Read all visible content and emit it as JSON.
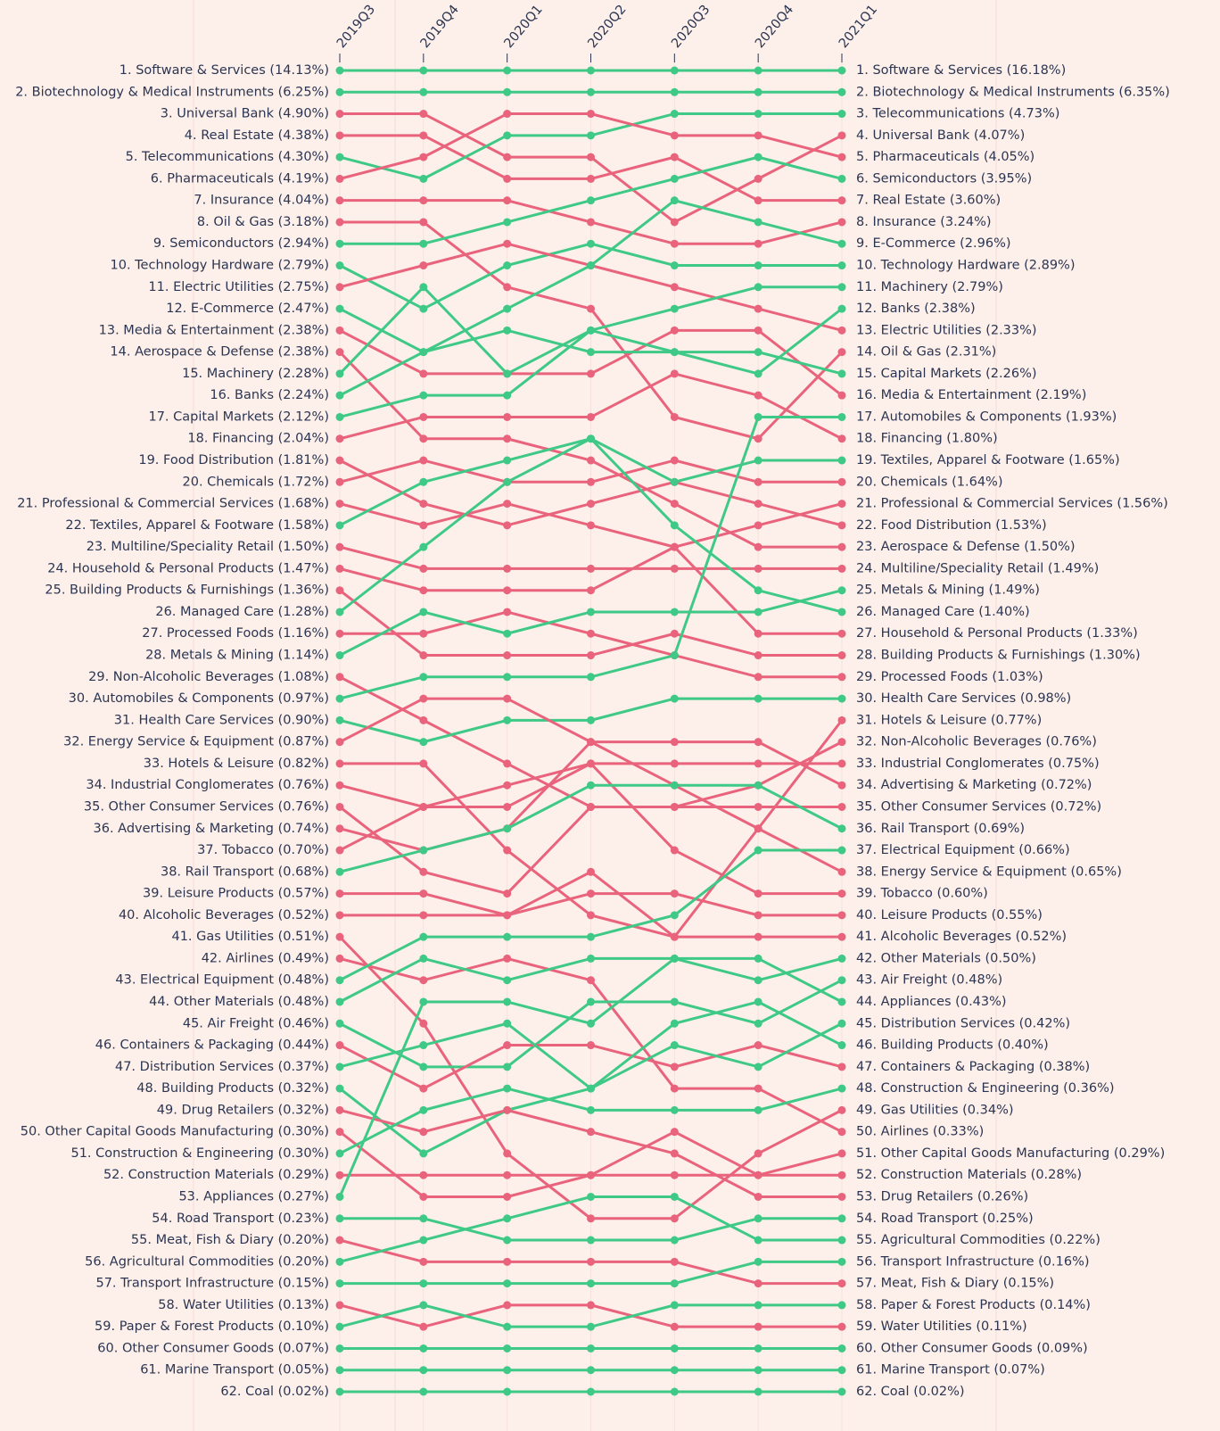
{
  "chart_data": {
    "type": "bump",
    "categories": [
      "2019Q3",
      "2019Q4",
      "2020Q1",
      "2020Q2",
      "2020Q3",
      "2020Q4",
      "2021Q1"
    ],
    "ylim": [
      1,
      62
    ],
    "left_labels": [
      "1. Software & Services (14.13%)",
      "2. Biotechnology & Medical Instruments (6.25%)",
      "3. Universal Bank (4.90%)",
      "4. Real Estate (4.38%)",
      "5. Telecommunications (4.30%)",
      "6. Pharmaceuticals (4.19%)",
      "7. Insurance (4.04%)",
      "8. Oil & Gas (3.18%)",
      "9. Semiconductors (2.94%)",
      "10. Technology Hardware (2.79%)",
      "11. Electric Utilities (2.75%)",
      "12. E-Commerce (2.47%)",
      "13. Media & Entertainment (2.38%)",
      "14. Aerospace & Defense (2.38%)",
      "15. Machinery (2.28%)",
      "16. Banks (2.24%)",
      "17. Capital Markets (2.12%)",
      "18. Financing (2.04%)",
      "19. Food Distribution (1.81%)",
      "20. Chemicals (1.72%)",
      "21. Professional & Commercial Services (1.68%)",
      "22. Textiles, Apparel & Footware (1.58%)",
      "23. Multiline/Speciality Retail (1.50%)",
      "24. Household & Personal Products (1.47%)",
      "25. Building Products & Furnishings (1.36%)",
      "26. Managed Care (1.28%)",
      "27. Processed Foods (1.16%)",
      "28. Metals & Mining (1.14%)",
      "29. Non-Alcoholic Beverages (1.08%)",
      "30. Automobiles & Components (0.97%)",
      "31. Health Care Services (0.90%)",
      "32. Energy Service & Equipment (0.87%)",
      "33. Hotels & Leisure (0.82%)",
      "34. Industrial Conglomerates (0.76%)",
      "35. Other Consumer Services (0.76%)",
      "36. Advertising & Marketing (0.74%)",
      "37. Tobacco (0.70%)",
      "38. Rail Transport (0.68%)",
      "39. Leisure Products (0.57%)",
      "40. Alcoholic Beverages (0.52%)",
      "41. Gas Utilities (0.51%)",
      "42. Airlines (0.49%)",
      "43. Electrical Equipment (0.48%)",
      "44. Other Materials (0.48%)",
      "45. Air Freight (0.46%)",
      "46. Containers & Packaging (0.44%)",
      "47. Distribution Services (0.37%)",
      "48. Building Products (0.32%)",
      "49. Drug Retailers (0.32%)",
      "50. Other Capital Goods Manufacturing (0.30%)",
      "51. Construction & Engineering (0.30%)",
      "52. Construction Materials (0.29%)",
      "53. Appliances (0.27%)",
      "54. Road Transport (0.23%)",
      "55. Meat, Fish & Diary (0.20%)",
      "56. Agricultural Commodities (0.20%)",
      "57. Transport Infrastructure (0.15%)",
      "58. Water Utilities (0.13%)",
      "59. Paper & Forest Products (0.10%)",
      "60. Other Consumer Goods (0.07%)",
      "61. Marine Transport (0.05%)",
      "62. Coal (0.02%)"
    ],
    "right_labels": [
      "1. Software & Services (16.18%)",
      "2. Biotechnology & Medical Instruments (6.35%)",
      "3. Telecommunications (4.73%)",
      "4. Universal Bank (4.07%)",
      "5. Pharmaceuticals (4.05%)",
      "6. Semiconductors (3.95%)",
      "7. Real Estate (3.60%)",
      "8. Insurance (3.24%)",
      "9. E-Commerce (2.96%)",
      "10. Technology Hardware (2.89%)",
      "11. Machinery (2.79%)",
      "12. Banks (2.38%)",
      "13. Electric Utilities (2.33%)",
      "14. Oil & Gas (2.31%)",
      "15. Capital Markets (2.26%)",
      "16. Media & Entertainment (2.19%)",
      "17. Automobiles & Components (1.93%)",
      "18. Financing (1.80%)",
      "19. Textiles, Apparel & Footware (1.65%)",
      "20. Chemicals (1.64%)",
      "21. Professional & Commercial Services (1.56%)",
      "22. Food Distribution (1.53%)",
      "23. Aerospace & Defense (1.50%)",
      "24. Multiline/Speciality Retail (1.49%)",
      "25. Metals & Mining (1.49%)",
      "26. Managed Care (1.40%)",
      "27. Household & Personal Products (1.33%)",
      "28. Building Products & Furnishings (1.30%)",
      "29. Processed Foods (1.03%)",
      "30. Health Care Services (0.98%)",
      "31. Hotels & Leisure (0.77%)",
      "32. Non-Alcoholic Beverages (0.76%)",
      "33. Industrial Conglomerates (0.75%)",
      "34. Advertising & Marketing (0.72%)",
      "35. Other Consumer Services (0.72%)",
      "36. Rail Transport (0.69%)",
      "37. Electrical Equipment (0.66%)",
      "38. Energy Service & Equipment (0.65%)",
      "39. Tobacco (0.60%)",
      "40. Leisure Products (0.55%)",
      "41. Alcoholic Beverages (0.52%)",
      "42. Other Materials (0.50%)",
      "43. Air Freight (0.48%)",
      "44. Appliances (0.43%)",
      "45. Distribution Services (0.42%)",
      "46. Building Products (0.40%)",
      "47. Containers & Packaging (0.38%)",
      "48. Construction & Engineering (0.36%)",
      "49. Gas Utilities (0.34%)",
      "50. Airlines (0.33%)",
      "51. Other Capital Goods Manufacturing (0.29%)",
      "52. Construction Materials (0.28%)",
      "53. Drug Retailers (0.26%)",
      "54. Road Transport (0.25%)",
      "55. Agricultural Commodities (0.22%)",
      "56. Transport Infrastructure (0.16%)",
      "57. Meat, Fish & Diary (0.15%)",
      "58. Paper & Forest Products (0.14%)",
      "59. Water Utilities (0.11%)",
      "60. Other Consumer Goods (0.09%)",
      "61. Marine Transport (0.07%)",
      "62. Coal (0.02%)"
    ],
    "series": [
      {
        "color": "#3fc987",
        "values": [
          1,
          1,
          1,
          1,
          1,
          1,
          1
        ]
      },
      {
        "color": "#3fc987",
        "values": [
          2,
          2,
          2,
          2,
          2,
          2,
          2
        ]
      },
      {
        "color": "#e9637c",
        "values": [
          3,
          3,
          5,
          5,
          8,
          6,
          4
        ]
      },
      {
        "color": "#e9637c",
        "values": [
          4,
          4,
          6,
          6,
          5,
          7,
          7
        ]
      },
      {
        "color": "#3fc987",
        "values": [
          5,
          6,
          4,
          4,
          3,
          3,
          3
        ]
      },
      {
        "color": "#e9637c",
        "values": [
          6,
          5,
          3,
          3,
          4,
          4,
          5
        ]
      },
      {
        "color": "#e9637c",
        "values": [
          7,
          7,
          7,
          8,
          9,
          9,
          8
        ]
      },
      {
        "color": "#e9637c",
        "values": [
          8,
          8,
          11,
          12,
          17,
          18,
          14
        ]
      },
      {
        "color": "#3fc987",
        "values": [
          9,
          9,
          8,
          7,
          6,
          5,
          6
        ]
      },
      {
        "color": "#3fc987",
        "values": [
          10,
          12,
          10,
          9,
          10,
          10,
          10
        ]
      },
      {
        "color": "#e9637c",
        "values": [
          11,
          10,
          9,
          10,
          11,
          12,
          13
        ]
      },
      {
        "color": "#3fc987",
        "values": [
          12,
          14,
          12,
          10,
          7,
          8,
          9
        ]
      },
      {
        "color": "#e9637c",
        "values": [
          13,
          15,
          15,
          15,
          13,
          13,
          16
        ]
      },
      {
        "color": "#e9637c",
        "values": [
          14,
          18,
          18,
          19,
          21,
          23,
          23
        ]
      },
      {
        "color": "#3fc987",
        "values": [
          15,
          11,
          15,
          13,
          12,
          11,
          11
        ]
      },
      {
        "color": "#3fc987",
        "values": [
          16,
          14,
          13,
          14,
          14,
          15,
          12
        ]
      },
      {
        "color": "#3fc987",
        "values": [
          17,
          16,
          16,
          13,
          14,
          14,
          15
        ]
      },
      {
        "color": "#e9637c",
        "values": [
          18,
          17,
          17,
          17,
          15,
          16,
          18
        ]
      },
      {
        "color": "#e9637c",
        "values": [
          19,
          21,
          22,
          21,
          20,
          21,
          22
        ]
      },
      {
        "color": "#e9637c",
        "values": [
          20,
          19,
          20,
          20,
          19,
          20,
          20
        ]
      },
      {
        "color": "#e9637c",
        "values": [
          21,
          22,
          21,
          22,
          23,
          22,
          21
        ]
      },
      {
        "color": "#3fc987",
        "values": [
          22,
          20,
          19,
          18,
          20,
          19,
          19
        ]
      },
      {
        "color": "#e9637c",
        "values": [
          23,
          24,
          24,
          24,
          24,
          24,
          24
        ]
      },
      {
        "color": "#e9637c",
        "values": [
          24,
          25,
          25,
          25,
          23,
          27,
          27
        ]
      },
      {
        "color": "#e9637c",
        "values": [
          25,
          28,
          28,
          28,
          27,
          28,
          28
        ]
      },
      {
        "color": "#3fc987",
        "values": [
          26,
          23,
          20,
          18,
          22,
          25,
          26
        ]
      },
      {
        "color": "#e9637c",
        "values": [
          27,
          27,
          26,
          27,
          28,
          29,
          29
        ]
      },
      {
        "color": "#3fc987",
        "values": [
          28,
          26,
          27,
          26,
          26,
          26,
          25
        ]
      },
      {
        "color": "#e9637c",
        "values": [
          29,
          31,
          33,
          35,
          35,
          34,
          32
        ]
      },
      {
        "color": "#3fc987",
        "values": [
          30,
          29,
          29,
          29,
          28,
          17,
          17
        ]
      },
      {
        "color": "#3fc987",
        "values": [
          31,
          32,
          31,
          31,
          30,
          30,
          30
        ]
      },
      {
        "color": "#e9637c",
        "values": [
          32,
          30,
          30,
          32,
          34,
          36,
          38
        ]
      },
      {
        "color": "#e9637c",
        "values": [
          33,
          33,
          37,
          40,
          41,
          36,
          31
        ]
      },
      {
        "color": "#e9637c",
        "values": [
          34,
          35,
          34,
          33,
          33,
          33,
          33
        ]
      },
      {
        "color": "#e9637c",
        "values": [
          35,
          38,
          39,
          35,
          35,
          35,
          35
        ]
      },
      {
        "color": "#e9637c",
        "values": [
          36,
          37,
          36,
          32,
          32,
          32,
          34
        ]
      },
      {
        "color": "#e9637c",
        "values": [
          37,
          35,
          35,
          33,
          37,
          39,
          39
        ]
      },
      {
        "color": "#3fc987",
        "values": [
          38,
          37,
          36,
          34,
          34,
          34,
          36
        ]
      },
      {
        "color": "#e9637c",
        "values": [
          39,
          39,
          40,
          39,
          39,
          40,
          40
        ]
      },
      {
        "color": "#e9637c",
        "values": [
          40,
          40,
          40,
          38,
          41,
          41,
          41
        ]
      },
      {
        "color": "#e9637c",
        "values": [
          41,
          45,
          51,
          54,
          54,
          51,
          49
        ]
      },
      {
        "color": "#e9637c",
        "values": [
          42,
          43,
          42,
          43,
          48,
          48,
          50
        ]
      },
      {
        "color": "#3fc987",
        "values": [
          43,
          41,
          41,
          41,
          40,
          37,
          37
        ]
      },
      {
        "color": "#3fc987",
        "values": [
          44,
          42,
          43,
          42,
          42,
          43,
          42
        ]
      },
      {
        "color": "#3fc987",
        "values": [
          45,
          47,
          47,
          44,
          44,
          45,
          43
        ]
      },
      {
        "color": "#e9637c",
        "values": [
          46,
          48,
          46,
          46,
          47,
          46,
          47
        ]
      },
      {
        "color": "#3fc987",
        "values": [
          47,
          46,
          45,
          48,
          46,
          47,
          45
        ]
      },
      {
        "color": "#3fc987",
        "values": [
          48,
          51,
          49,
          48,
          45,
          44,
          46
        ]
      },
      {
        "color": "#e9637c",
        "values": [
          49,
          50,
          49,
          50,
          51,
          53,
          53
        ]
      },
      {
        "color": "#e9637c",
        "values": [
          50,
          53,
          53,
          52,
          50,
          52,
          51
        ]
      },
      {
        "color": "#3fc987",
        "values": [
          51,
          49,
          48,
          49,
          49,
          49,
          48
        ]
      },
      {
        "color": "#e9637c",
        "values": [
          52,
          52,
          52,
          52,
          52,
          52,
          52
        ]
      },
      {
        "color": "#3fc987",
        "values": [
          53,
          44,
          44,
          45,
          42,
          42,
          44
        ]
      },
      {
        "color": "#3fc987",
        "values": [
          54,
          54,
          55,
          55,
          55,
          54,
          54
        ]
      },
      {
        "color": "#e9637c",
        "values": [
          55,
          56,
          56,
          56,
          56,
          57,
          57
        ]
      },
      {
        "color": "#3fc987",
        "values": [
          56,
          55,
          54,
          53,
          53,
          55,
          55
        ]
      },
      {
        "color": "#3fc987",
        "values": [
          57,
          57,
          57,
          57,
          57,
          56,
          56
        ]
      },
      {
        "color": "#e9637c",
        "values": [
          58,
          59,
          58,
          58,
          59,
          59,
          59
        ]
      },
      {
        "color": "#3fc987",
        "values": [
          59,
          58,
          59,
          59,
          58,
          58,
          58
        ]
      },
      {
        "color": "#3fc987",
        "values": [
          60,
          60,
          60,
          60,
          60,
          60,
          60
        ]
      },
      {
        "color": "#3fc987",
        "values": [
          61,
          61,
          61,
          61,
          61,
          61,
          61
        ]
      },
      {
        "color": "#3fc987",
        "values": [
          62,
          62,
          62,
          62,
          62,
          62,
          62
        ]
      }
    ]
  }
}
